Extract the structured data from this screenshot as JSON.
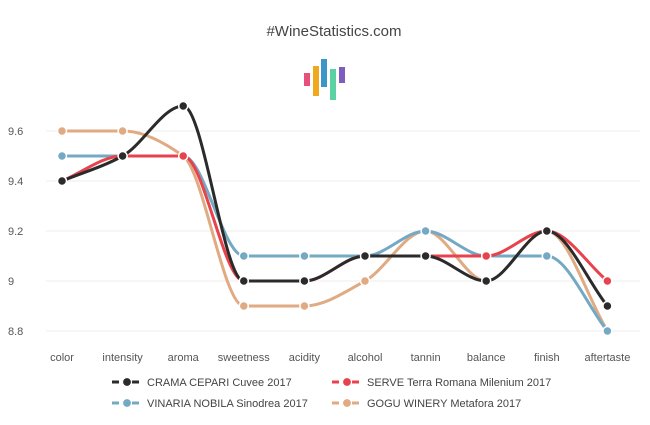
{
  "chart_data": {
    "type": "line",
    "title": "#WineStatistics.com",
    "categories": [
      "color",
      "intensity",
      "aroma",
      "sweetness",
      "acidity",
      "alcohol",
      "tannin",
      "balance",
      "finish",
      "aftertaste"
    ],
    "ylim": [
      8.75,
      9.8
    ],
    "yticks": [
      8.8,
      9,
      9.2,
      9.4,
      9.6
    ],
    "ytick_labels": [
      "8.8",
      "9",
      "9.2",
      "9.4",
      "9.6"
    ],
    "grid": true,
    "legend_position": "bottom",
    "series": [
      {
        "name": "CRAMA CEPARI Cuvee 2017",
        "color": "#2b2b2b",
        "values": [
          9.4,
          9.5,
          9.7,
          9.0,
          9.0,
          9.1,
          9.1,
          9.0,
          9.2,
          8.9
        ]
      },
      {
        "name": "SERVE Terra Romana Milenium 2017",
        "color": "#e8424c",
        "values": [
          9.4,
          9.5,
          9.5,
          9.0,
          9.0,
          9.1,
          9.1,
          9.1,
          9.2,
          9.0
        ]
      },
      {
        "name": "VINARIA NOBILA Sinodrea 2017",
        "color": "#74a9c4",
        "values": [
          9.5,
          9.5,
          9.5,
          9.1,
          9.1,
          9.1,
          9.2,
          9.1,
          9.1,
          8.8
        ]
      },
      {
        "name": "GOGU WINERY Metafora 2017",
        "color": "#e0aa82",
        "values": [
          9.6,
          9.6,
          9.5,
          8.9,
          8.9,
          9.0,
          9.2,
          9.0,
          9.2,
          8.8
        ]
      }
    ],
    "logo_colors": [
      "#e8507a",
      "#f2a81d",
      "#3d96c8",
      "#5cd1a4",
      "#7d5dbd"
    ]
  }
}
